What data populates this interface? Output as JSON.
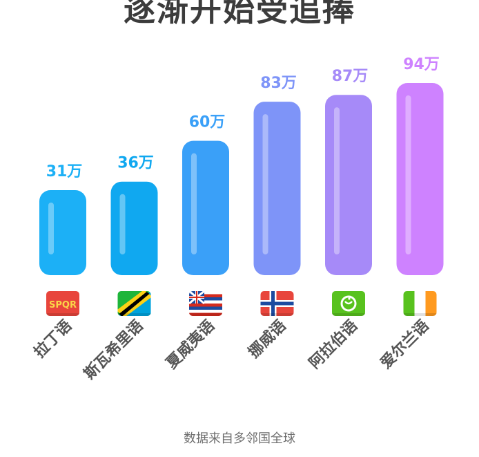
{
  "title": "逐渐开始受追捧",
  "source": "数据来自多邻国全球",
  "chart_data": {
    "type": "bar",
    "unit": "万",
    "categories": [
      "拉丁语",
      "斯瓦希里语",
      "夏威夷语",
      "挪威语",
      "阿拉伯语",
      "爱尔兰语"
    ],
    "values": [
      31,
      36,
      60,
      83,
      87,
      94
    ],
    "value_labels": [
      "31万",
      "36万",
      "60万",
      "83万",
      "87万",
      "94万"
    ],
    "ylim": [
      0,
      100
    ],
    "grid": false,
    "legend": "none",
    "flag_icons": [
      "spqr-icon",
      "tanzania-flag-icon",
      "hawaii-flag-icon",
      "norway-flag-icon",
      "arabic-badge-icon",
      "ireland-flag-icon"
    ],
    "flag_text": [
      "SPQR",
      "",
      "",
      "",
      "",
      ""
    ],
    "colors": [
      "#1cb0f6",
      "#10a8f0",
      "#3aa0f8",
      "#7e94f8",
      "#a68af8",
      "#ce82ff"
    ]
  }
}
